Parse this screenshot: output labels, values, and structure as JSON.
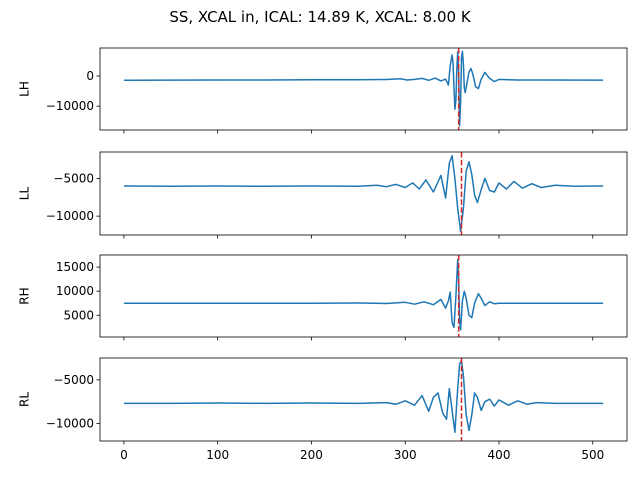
{
  "figure": {
    "title": "SS, XCAL in, ICAL: 14.89 K, XCAL: 8.00 K"
  },
  "colors": {
    "series": "#1f77b4",
    "marker_line": "#d62728",
    "axes": "#000000",
    "background": "#ffffff"
  },
  "chart_data": [
    {
      "type": "line",
      "ylabel": "LH",
      "xlim": [
        -25.5,
        536.5
      ],
      "ylim": [
        -17900,
        9300
      ],
      "yticks": [
        -10000,
        0
      ],
      "xticks": [
        0,
        100,
        200,
        300,
        400,
        500
      ],
      "marker_x": 357,
      "grid": false,
      "series": [
        {
          "points": [
            [
              0,
              -1400
            ],
            [
              50,
              -1350
            ],
            [
              100,
              -1300
            ],
            [
              150,
              -1300
            ],
            [
              200,
              -1250
            ],
            [
              250,
              -1250
            ],
            [
              280,
              -1150
            ],
            [
              295,
              -900
            ],
            [
              302,
              -1300
            ],
            [
              310,
              -1100
            ],
            [
              318,
              -800
            ],
            [
              325,
              -1400
            ],
            [
              332,
              -700
            ],
            [
              338,
              -1600
            ],
            [
              343,
              -1000
            ],
            [
              346,
              -3000
            ],
            [
              348,
              3500
            ],
            [
              350,
              7000
            ],
            [
              351,
              4000
            ],
            [
              352,
              -4000
            ],
            [
              353,
              -11000
            ],
            [
              354,
              -8000
            ],
            [
              355,
              2000
            ],
            [
              356,
              8000
            ],
            [
              357,
              1000
            ],
            [
              358,
              -16500
            ],
            [
              359,
              -9000
            ],
            [
              360,
              6000
            ],
            [
              361,
              8200
            ],
            [
              362,
              4000
            ],
            [
              363,
              -4000
            ],
            [
              364,
              -5500
            ],
            [
              366,
              -2000
            ],
            [
              368,
              1300
            ],
            [
              370,
              2500
            ],
            [
              372,
              800
            ],
            [
              375,
              -3500
            ],
            [
              378,
              -4200
            ],
            [
              381,
              -1000
            ],
            [
              385,
              1200
            ],
            [
              390,
              -800
            ],
            [
              395,
              -1800
            ],
            [
              400,
              -1100
            ],
            [
              410,
              -1200
            ],
            [
              420,
              -1300
            ],
            [
              450,
              -1300
            ],
            [
              500,
              -1350
            ],
            [
              511,
              -1350
            ]
          ]
        }
      ]
    },
    {
      "type": "line",
      "ylabel": "LL",
      "xlim": [
        -25.5,
        536.5
      ],
      "ylim": [
        -12500,
        -1500
      ],
      "yticks": [
        -10000,
        -5000
      ],
      "xticks": [
        0,
        100,
        200,
        300,
        400,
        500
      ],
      "marker_x": 360,
      "grid": false,
      "series": [
        {
          "points": [
            [
              0,
              -6000
            ],
            [
              50,
              -6050
            ],
            [
              100,
              -6000
            ],
            [
              150,
              -6050
            ],
            [
              200,
              -6000
            ],
            [
              250,
              -6050
            ],
            [
              270,
              -5900
            ],
            [
              280,
              -6100
            ],
            [
              290,
              -5800
            ],
            [
              300,
              -6200
            ],
            [
              308,
              -5600
            ],
            [
              315,
              -6400
            ],
            [
              322,
              -5200
            ],
            [
              330,
              -6800
            ],
            [
              338,
              -4600
            ],
            [
              343,
              -7600
            ],
            [
              347,
              -3000
            ],
            [
              350,
              -2000
            ],
            [
              353,
              -5000
            ],
            [
              356,
              -9000
            ],
            [
              359,
              -12000
            ],
            [
              362,
              -9000
            ],
            [
              365,
              -4000
            ],
            [
              368,
              -2800
            ],
            [
              371,
              -4500
            ],
            [
              374,
              -7200
            ],
            [
              377,
              -8200
            ],
            [
              381,
              -6500
            ],
            [
              385,
              -5000
            ],
            [
              390,
              -6600
            ],
            [
              395,
              -6800
            ],
            [
              400,
              -5600
            ],
            [
              408,
              -6400
            ],
            [
              416,
              -5400
            ],
            [
              425,
              -6300
            ],
            [
              435,
              -5700
            ],
            [
              445,
              -6200
            ],
            [
              460,
              -5900
            ],
            [
              480,
              -6050
            ],
            [
              511,
              -6000
            ]
          ]
        }
      ]
    },
    {
      "type": "line",
      "ylabel": "RH",
      "xlim": [
        -25.5,
        536.5
      ],
      "ylim": [
        500,
        17500
      ],
      "yticks": [
        5000,
        10000,
        15000
      ],
      "xticks": [
        0,
        100,
        200,
        300,
        400,
        500
      ],
      "marker_x": 357,
      "grid": false,
      "series": [
        {
          "points": [
            [
              0,
              7500
            ],
            [
              50,
              7500
            ],
            [
              100,
              7500
            ],
            [
              150,
              7500
            ],
            [
              200,
              7500
            ],
            [
              250,
              7550
            ],
            [
              280,
              7450
            ],
            [
              300,
              7700
            ],
            [
              310,
              7300
            ],
            [
              320,
              7800
            ],
            [
              330,
              7200
            ],
            [
              338,
              8300
            ],
            [
              343,
              6500
            ],
            [
              346,
              8000
            ],
            [
              348,
              9800
            ],
            [
              350,
              3500
            ],
            [
              352,
              2500
            ],
            [
              354,
              9000
            ],
            [
              356,
              16500
            ],
            [
              357,
              12000
            ],
            [
              358,
              4000
            ],
            [
              359,
              2000
            ],
            [
              361,
              8000
            ],
            [
              363,
              10000
            ],
            [
              365,
              8500
            ],
            [
              368,
              5000
            ],
            [
              371,
              4500
            ],
            [
              374,
              7500
            ],
            [
              378,
              9500
            ],
            [
              381,
              8500
            ],
            [
              385,
              7000
            ],
            [
              390,
              7800
            ],
            [
              395,
              7400
            ],
            [
              400,
              7500
            ],
            [
              450,
              7500
            ],
            [
              511,
              7500
            ]
          ]
        }
      ]
    },
    {
      "type": "line",
      "ylabel": "RL",
      "xlim": [
        -25.5,
        536.5
      ],
      "ylim": [
        -12000,
        -2500
      ],
      "yticks": [
        -10000,
        -5000
      ],
      "xticks": [
        0,
        100,
        200,
        300,
        400,
        500
      ],
      "marker_x": 360,
      "grid": false,
      "series": [
        {
          "points": [
            [
              0,
              -7700
            ],
            [
              50,
              -7700
            ],
            [
              100,
              -7650
            ],
            [
              150,
              -7700
            ],
            [
              200,
              -7650
            ],
            [
              250,
              -7700
            ],
            [
              280,
              -7600
            ],
            [
              290,
              -7800
            ],
            [
              300,
              -7400
            ],
            [
              310,
              -7900
            ],
            [
              318,
              -6800
            ],
            [
              325,
              -8600
            ],
            [
              330,
              -7000
            ],
            [
              335,
              -6500
            ],
            [
              340,
              -8800
            ],
            [
              344,
              -9500
            ],
            [
              347,
              -6000
            ],
            [
              350,
              -8500
            ],
            [
              353,
              -11000
            ],
            [
              356,
              -6000
            ],
            [
              358,
              -3200
            ],
            [
              360,
              -2800
            ],
            [
              362,
              -4500
            ],
            [
              365,
              -9000
            ],
            [
              368,
              -10800
            ],
            [
              371,
              -9000
            ],
            [
              374,
              -6500
            ],
            [
              377,
              -7000
            ],
            [
              381,
              -8500
            ],
            [
              385,
              -7500
            ],
            [
              390,
              -7200
            ],
            [
              395,
              -8000
            ],
            [
              400,
              -7300
            ],
            [
              410,
              -7900
            ],
            [
              420,
              -7400
            ],
            [
              430,
              -7800
            ],
            [
              440,
              -7600
            ],
            [
              460,
              -7700
            ],
            [
              511,
              -7700
            ]
          ]
        }
      ]
    }
  ]
}
